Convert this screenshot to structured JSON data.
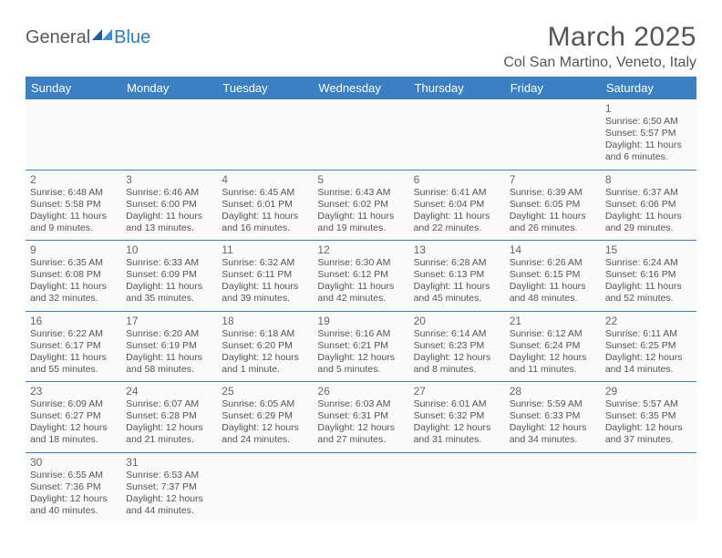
{
  "logo": {
    "general": "General",
    "blue": "Blue"
  },
  "title": "March 2025",
  "location": "Col San Martino, Veneto, Italy",
  "colors": {
    "header_bg": "#3a80c3",
    "header_text": "#ffffff",
    "cell_border": "#3a80c3",
    "cell_bg": "#fafafa",
    "text": "#555555",
    "logo_blue": "#2f7dbb"
  },
  "dayHeaders": [
    "Sunday",
    "Monday",
    "Tuesday",
    "Wednesday",
    "Thursday",
    "Friday",
    "Saturday"
  ],
  "weeks": [
    [
      null,
      null,
      null,
      null,
      null,
      null,
      {
        "n": "1",
        "sr": "6:50 AM",
        "ss": "5:57 PM",
        "dl": "11 hours and 6 minutes."
      }
    ],
    [
      {
        "n": "2",
        "sr": "6:48 AM",
        "ss": "5:58 PM",
        "dl": "11 hours and 9 minutes."
      },
      {
        "n": "3",
        "sr": "6:46 AM",
        "ss": "6:00 PM",
        "dl": "11 hours and 13 minutes."
      },
      {
        "n": "4",
        "sr": "6:45 AM",
        "ss": "6:01 PM",
        "dl": "11 hours and 16 minutes."
      },
      {
        "n": "5",
        "sr": "6:43 AM",
        "ss": "6:02 PM",
        "dl": "11 hours and 19 minutes."
      },
      {
        "n": "6",
        "sr": "6:41 AM",
        "ss": "6:04 PM",
        "dl": "11 hours and 22 minutes."
      },
      {
        "n": "7",
        "sr": "6:39 AM",
        "ss": "6:05 PM",
        "dl": "11 hours and 26 minutes."
      },
      {
        "n": "8",
        "sr": "6:37 AM",
        "ss": "6:06 PM",
        "dl": "11 hours and 29 minutes."
      }
    ],
    [
      {
        "n": "9",
        "sr": "6:35 AM",
        "ss": "6:08 PM",
        "dl": "11 hours and 32 minutes."
      },
      {
        "n": "10",
        "sr": "6:33 AM",
        "ss": "6:09 PM",
        "dl": "11 hours and 35 minutes."
      },
      {
        "n": "11",
        "sr": "6:32 AM",
        "ss": "6:11 PM",
        "dl": "11 hours and 39 minutes."
      },
      {
        "n": "12",
        "sr": "6:30 AM",
        "ss": "6:12 PM",
        "dl": "11 hours and 42 minutes."
      },
      {
        "n": "13",
        "sr": "6:28 AM",
        "ss": "6:13 PM",
        "dl": "11 hours and 45 minutes."
      },
      {
        "n": "14",
        "sr": "6:26 AM",
        "ss": "6:15 PM",
        "dl": "11 hours and 48 minutes."
      },
      {
        "n": "15",
        "sr": "6:24 AM",
        "ss": "6:16 PM",
        "dl": "11 hours and 52 minutes."
      }
    ],
    [
      {
        "n": "16",
        "sr": "6:22 AM",
        "ss": "6:17 PM",
        "dl": "11 hours and 55 minutes."
      },
      {
        "n": "17",
        "sr": "6:20 AM",
        "ss": "6:19 PM",
        "dl": "11 hours and 58 minutes."
      },
      {
        "n": "18",
        "sr": "6:18 AM",
        "ss": "6:20 PM",
        "dl": "12 hours and 1 minute."
      },
      {
        "n": "19",
        "sr": "6:16 AM",
        "ss": "6:21 PM",
        "dl": "12 hours and 5 minutes."
      },
      {
        "n": "20",
        "sr": "6:14 AM",
        "ss": "6:23 PM",
        "dl": "12 hours and 8 minutes."
      },
      {
        "n": "21",
        "sr": "6:12 AM",
        "ss": "6:24 PM",
        "dl": "12 hours and 11 minutes."
      },
      {
        "n": "22",
        "sr": "6:11 AM",
        "ss": "6:25 PM",
        "dl": "12 hours and 14 minutes."
      }
    ],
    [
      {
        "n": "23",
        "sr": "6:09 AM",
        "ss": "6:27 PM",
        "dl": "12 hours and 18 minutes."
      },
      {
        "n": "24",
        "sr": "6:07 AM",
        "ss": "6:28 PM",
        "dl": "12 hours and 21 minutes."
      },
      {
        "n": "25",
        "sr": "6:05 AM",
        "ss": "6:29 PM",
        "dl": "12 hours and 24 minutes."
      },
      {
        "n": "26",
        "sr": "6:03 AM",
        "ss": "6:31 PM",
        "dl": "12 hours and 27 minutes."
      },
      {
        "n": "27",
        "sr": "6:01 AM",
        "ss": "6:32 PM",
        "dl": "12 hours and 31 minutes."
      },
      {
        "n": "28",
        "sr": "5:59 AM",
        "ss": "6:33 PM",
        "dl": "12 hours and 34 minutes."
      },
      {
        "n": "29",
        "sr": "5:57 AM",
        "ss": "6:35 PM",
        "dl": "12 hours and 37 minutes."
      }
    ],
    [
      {
        "n": "30",
        "sr": "6:55 AM",
        "ss": "7:36 PM",
        "dl": "12 hours and 40 minutes."
      },
      {
        "n": "31",
        "sr": "6:53 AM",
        "ss": "7:37 PM",
        "dl": "12 hours and 44 minutes."
      },
      null,
      null,
      null,
      null,
      null
    ]
  ],
  "labels": {
    "sunrise": "Sunrise:",
    "sunset": "Sunset:",
    "daylight": "Daylight:"
  }
}
